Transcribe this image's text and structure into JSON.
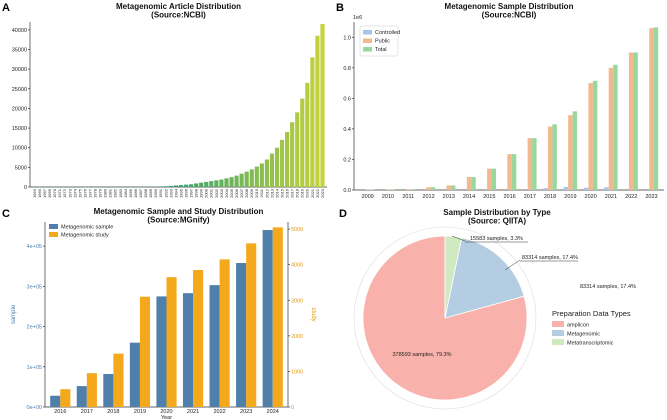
{
  "panels": {
    "a": "A",
    "b": "B",
    "c": "C",
    "d": "D"
  },
  "chart_data": [
    {
      "type": "bar",
      "title": "Metagenomic Article Distribution\n(Source:NCBI)",
      "xlabel": "",
      "ylabel": "",
      "ylim": [
        0,
        42000
      ],
      "yticks": [
        0,
        5000,
        10000,
        15000,
        20000,
        25000,
        30000,
        35000,
        40000
      ],
      "categories": [
        "1963",
        "1965",
        "1967",
        "1969",
        "1970",
        "1971",
        "1972",
        "1973",
        "1974",
        "1975",
        "1976",
        "1977",
        "1978",
        "1979",
        "1980",
        "1981",
        "1982",
        "1983",
        "1984",
        "1985",
        "1986",
        "1987",
        "1988",
        "1989",
        "1990",
        "1991",
        "1992",
        "1993",
        "1994",
        "1995",
        "1996",
        "1997",
        "1998",
        "1999",
        "2000",
        "2001",
        "2002",
        "2003",
        "2004",
        "2005",
        "2006",
        "2007",
        "2008",
        "2009",
        "2010",
        "2011",
        "2012",
        "2013",
        "2014",
        "2015",
        "2016",
        "2017",
        "2018",
        "2019",
        "2020",
        "2021",
        "2022",
        "2023"
      ],
      "values": [
        1,
        1,
        1,
        1,
        1,
        1,
        1,
        1,
        1,
        1,
        1,
        1,
        1,
        1,
        1,
        1,
        1,
        1,
        5,
        10,
        15,
        20,
        40,
        60,
        100,
        150,
        200,
        300,
        400,
        500,
        600,
        700,
        900,
        1100,
        1300,
        1500,
        1700,
        1900,
        2200,
        2500,
        2900,
        3400,
        3900,
        4500,
        5200,
        6000,
        7000,
        8500,
        10000,
        12000,
        14000,
        16500,
        19000,
        22500,
        26500,
        33000,
        38500,
        41500
      ]
    },
    {
      "type": "bar",
      "title": "Metagenomic Sample Distribution\n(Source:NCBI)",
      "xlabel": "",
      "ylabel": "",
      "yscale_label": "1e6",
      "ylim": [
        0,
        1.1
      ],
      "yticks": [
        "0.0",
        "0.2",
        "0.4",
        "0.6",
        "0.8",
        "1.0"
      ],
      "categories": [
        "2009",
        "2010",
        "2011",
        "2012",
        "2013",
        "2014",
        "2015",
        "2016",
        "2017",
        "2018",
        "2019",
        "2020",
        "2021",
        "2022",
        "2023"
      ],
      "series": [
        {
          "name": "Controlled",
          "color": "#a9c4ea",
          "values": [
            0,
            0,
            0,
            0,
            0,
            0,
            0,
            0,
            0,
            0.012,
            0.02,
            0.015,
            0.018,
            0,
            0
          ]
        },
        {
          "name": "Public",
          "color": "#f2b98f",
          "values": [
            0.003,
            0.004,
            0.005,
            0.018,
            0.03,
            0.085,
            0.14,
            0.235,
            0.34,
            0.415,
            0.49,
            0.7,
            0.8,
            0.9,
            1.06
          ]
        },
        {
          "name": "Total",
          "color": "#9ad79c",
          "values": [
            0.003,
            0.004,
            0.005,
            0.018,
            0.03,
            0.085,
            0.14,
            0.235,
            0.34,
            0.43,
            0.515,
            0.715,
            0.82,
            0.9,
            1.065
          ]
        }
      ]
    },
    {
      "type": "bar",
      "title": "Metagenomic Sample and Study Distribution\n(Source:MGnify)",
      "xlabel": "Year",
      "ylabel": "sample",
      "ylabel_right": "study",
      "ylim": [
        0,
        460000
      ],
      "ylim_right": [
        0,
        5200
      ],
      "yticks": [
        "0e+00",
        "1e+05",
        "2e+05",
        "3e+05",
        "4e+05"
      ],
      "yticks_right": [
        "0",
        "1000",
        "2000",
        "3000",
        "4000",
        "5000"
      ],
      "categories": [
        "2016",
        "2017",
        "2018",
        "2019",
        "2020",
        "2021",
        "2022",
        "2023",
        "2024"
      ],
      "series": [
        {
          "name": "Metagenomic sample",
          "color": "#4f7fab",
          "axis": "left",
          "values": [
            28000,
            52000,
            82000,
            160000,
            275000,
            283000,
            303000,
            358000,
            440000
          ]
        },
        {
          "name": "Metagenomic study",
          "color": "#f4a81c",
          "axis": "right",
          "values": [
            500,
            950,
            1500,
            3100,
            3650,
            3850,
            4150,
            4600,
            5050
          ]
        }
      ]
    },
    {
      "type": "pie",
      "title": "Sample Distribution by Type\n(Source: QIITA)",
      "legend_title": "Preparation Data Types",
      "categories": [
        "amplicon",
        "Metagenomic",
        "Metatranscriptomic"
      ],
      "values": [
        378593,
        83314,
        15583
      ],
      "colors": [
        "#f9b1ac",
        "#b4cde2",
        "#cfe9c1"
      ],
      "labels": [
        "378593 samples, 79.3%",
        "83314 samples, 17.4%",
        "15583 samples, 3.3%"
      ],
      "extra_annotation": "83314 samples, 17.4%"
    }
  ]
}
